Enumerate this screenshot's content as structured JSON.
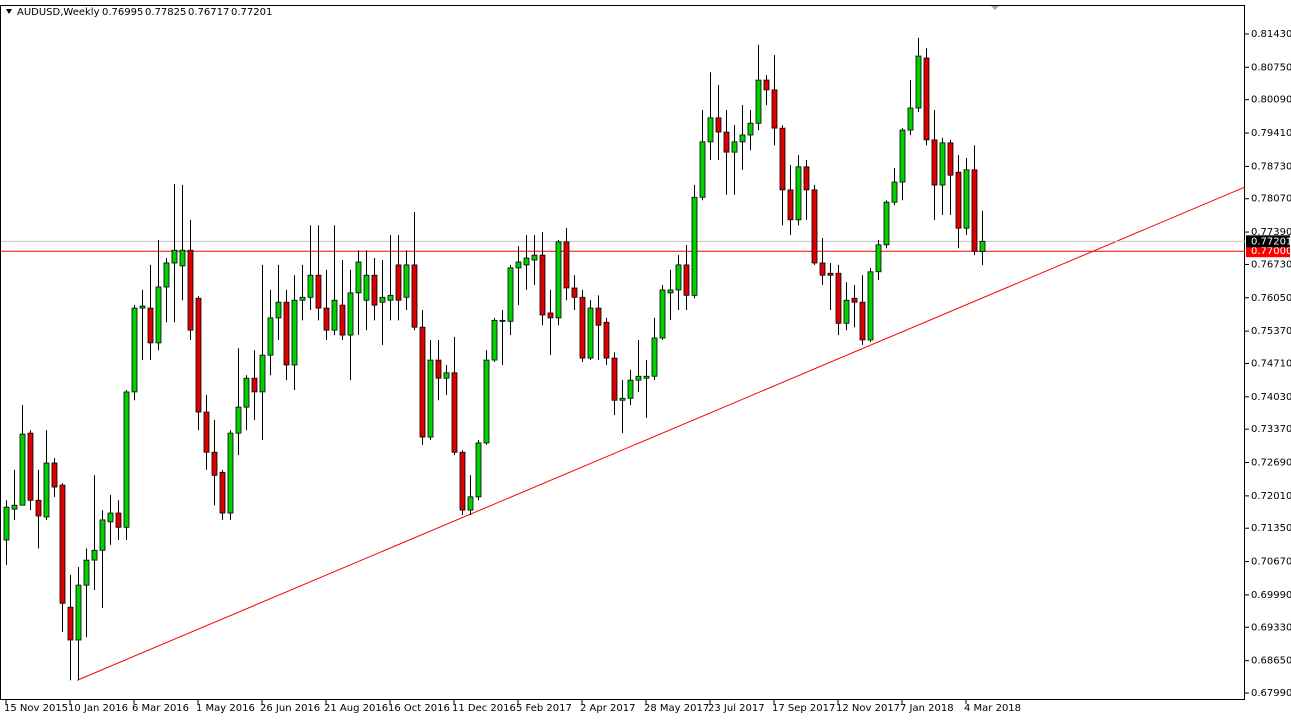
{
  "chart_data": {
    "type": "candlestick",
    "title": "AUDUSD,Weekly",
    "categories": [
      "15 Nov 2015",
      null,
      null,
      null,
      null,
      null,
      null,
      null,
      "10 Jan 2016",
      null,
      null,
      null,
      null,
      null,
      null,
      null,
      "6 Mar 2016",
      null,
      null,
      null,
      null,
      null,
      null,
      null,
      "1 May 2016",
      null,
      null,
      null,
      null,
      null,
      null,
      null,
      "26 Jun 2016",
      null,
      null,
      null,
      null,
      null,
      null,
      null,
      "21 Aug 2016",
      null,
      null,
      null,
      null,
      null,
      null,
      null,
      "16 Oct 2016",
      null,
      null,
      null,
      null,
      null,
      null,
      null,
      "11 Dec 2016",
      null,
      null,
      null,
      null,
      null,
      null,
      null,
      "5 Feb 2017",
      null,
      null,
      null,
      null,
      null,
      null,
      null,
      "2 Apr 2017",
      null,
      null,
      null,
      null,
      null,
      null,
      null,
      "28 May 2017",
      null,
      null,
      null,
      null,
      null,
      null,
      null,
      "23 Jul 2017",
      null,
      null,
      null,
      null,
      null,
      null,
      null,
      "17 Sep 2017",
      null,
      null,
      null,
      null,
      null,
      null,
      null,
      "12 Nov 2017",
      null,
      null,
      null,
      null,
      null,
      null,
      null,
      "7 Jan 2018",
      null,
      null,
      null,
      null,
      null,
      null,
      null,
      "4 Mar 2018",
      null,
      null
    ],
    "open": [
      0.7111,
      0.7174,
      0.7182,
      0.7329,
      0.7192,
      0.7158,
      0.7268,
      0.7223,
      0.6974,
      0.6907,
      0.7019,
      0.707,
      0.709,
      0.7148,
      0.7166,
      0.7137,
      0.7413,
      0.7584,
      0.7584,
      0.7513,
      0.7627,
      0.7676,
      0.767,
      0.7702,
      0.7604,
      0.7372,
      0.729,
      0.7249,
      0.7166,
      0.7329,
      0.7382,
      0.7441,
      0.7413,
      0.7488,
      0.7564,
      0.7596,
      0.7468,
      0.76,
      0.7606,
      0.7651,
      0.7584,
      0.7539,
      0.759,
      0.7529,
      0.7615,
      0.76,
      0.7651,
      0.7596,
      0.76,
      0.7672,
      0.7606,
      0.7672,
      0.7545,
      0.7321,
      0.7478,
      0.7441,
      0.7452,
      0.729,
      0.7172,
      0.7199,
      0.7309,
      0.7478,
      0.7557,
      0.7557,
      0.7666,
      0.7672,
      0.7682,
      0.7692,
      0.7574,
      0.7564,
      0.7719,
      0.7625,
      0.7606,
      0.7482,
      0.7584,
      0.7555,
      0.7482,
      0.7396,
      0.74,
      0.7437,
      0.7441,
      0.7445,
      0.7523,
      0.7615,
      0.7621,
      0.7672,
      0.761,
      0.781,
      0.7923,
      0.7972,
      0.7943,
      0.7902,
      0.7923,
      0.7937,
      0.7961,
      0.8049,
      0.8029,
      0.7951,
      0.7825,
      0.7764,
      0.7872,
      0.7825,
      0.7676,
      0.7655,
      0.7655,
      0.7553,
      0.7604,
      0.7596,
      0.7519,
      0.7658,
      0.7713,
      0.78,
      0.7841,
      0.7947,
      0.7992,
      0.8094,
      0.7927,
      0.7835,
      0.7921,
      0.7861,
      0.7747,
      0.7866,
      0.76995
    ],
    "high": [
      0.7192,
      0.7254,
      0.7386,
      0.7335,
      0.7254,
      0.7335,
      0.7278,
      0.7227,
      0.704,
      0.7056,
      0.7094,
      0.7243,
      0.7172,
      0.7203,
      0.7192,
      0.7417,
      0.759,
      0.7621,
      0.7672,
      0.7723,
      0.7686,
      0.7837,
      0.7835,
      0.7764,
      0.7608,
      0.7407,
      0.7356,
      0.7254,
      0.7335,
      0.7502,
      0.7447,
      0.7498,
      0.7672,
      0.7621,
      0.7672,
      0.7621,
      0.7651,
      0.7672,
      0.7753,
      0.7753,
      0.7662,
      0.7753,
      0.7682,
      0.7662,
      0.7702,
      0.7702,
      0.7686,
      0.7682,
      0.7733,
      0.7733,
      0.7702,
      0.778,
      0.758,
      0.7519,
      0.7519,
      0.7468,
      0.7525,
      0.7294,
      0.7243,
      0.7315,
      0.7498,
      0.7564,
      0.758,
      0.7672,
      0.771,
      0.7733,
      0.7733,
      0.7739,
      0.7621,
      0.7723,
      0.7747,
      0.7651,
      0.7621,
      0.76,
      0.761,
      0.7564,
      0.7494,
      0.7437,
      0.7458,
      0.7519,
      0.7478,
      0.7564,
      0.7631,
      0.7662,
      0.7692,
      0.7713,
      0.7835,
      0.7988,
      0.8065,
      0.8039,
      0.7988,
      0.7957,
      0.7998,
      0.7988,
      0.8121,
      0.8059,
      0.81,
      0.7957,
      0.7876,
      0.7896,
      0.7886,
      0.7835,
      0.7727,
      0.7676,
      0.7672,
      0.7637,
      0.7631,
      0.7651,
      0.7666,
      0.7723,
      0.7804,
      0.787,
      0.7951,
      0.8049,
      0.8135,
      0.8114,
      0.7988,
      0.7931,
      0.7927,
      0.7896,
      0.789,
      0.7916,
      0.77825
    ],
    "low": [
      0.706,
      0.7152,
      0.7182,
      0.7172,
      0.7094,
      0.7152,
      0.7199,
      0.6923,
      0.6825,
      0.6825,
      0.6913,
      0.7009,
      0.6972,
      0.7101,
      0.7111,
      0.7111,
      0.7396,
      0.7478,
      0.7478,
      0.7498,
      0.7555,
      0.7555,
      0.76,
      0.7519,
      0.7335,
      0.7254,
      0.7182,
      0.7152,
      0.7152,
      0.7284,
      0.7335,
      0.7356,
      0.7315,
      0.7447,
      0.7519,
      0.7437,
      0.7417,
      0.7559,
      0.758,
      0.7559,
      0.7519,
      0.7529,
      0.7519,
      0.7437,
      0.7529,
      0.7539,
      0.7559,
      0.7509,
      0.7559,
      0.7559,
      0.758,
      0.7539,
      0.7305,
      0.7315,
      0.7396,
      0.7407,
      0.7284,
      0.7162,
      0.7162,
      0.7192,
      0.7305,
      0.7474,
      0.7468,
      0.7529,
      0.759,
      0.7621,
      0.7631,
      0.7549,
      0.7488,
      0.7549,
      0.76,
      0.758,
      0.7474,
      0.7478,
      0.7478,
      0.7468,
      0.7366,
      0.7329,
      0.7386,
      0.7413,
      0.736,
      0.7437,
      0.7519,
      0.756,
      0.758,
      0.758,
      0.7604,
      0.7804,
      0.7886,
      0.7886,
      0.7815,
      0.7815,
      0.7866,
      0.7906,
      0.7947,
      0.7998,
      0.7916,
      0.7753,
      0.7733,
      0.7753,
      0.7764,
      0.7672,
      0.7631,
      0.758,
      0.7529,
      0.7539,
      0.7545,
      0.7509,
      0.7515,
      0.7641,
      0.7706,
      0.7794,
      0.7804,
      0.7937,
      0.7984,
      0.7916,
      0.7764,
      0.7774,
      0.7774,
      0.7706,
      0.7733,
      0.7692,
      0.76717
    ],
    "close": [
      0.7178,
      0.7182,
      0.7327,
      0.7192,
      0.716,
      0.7268,
      0.7219,
      0.6982,
      0.6907,
      0.7019,
      0.707,
      0.709,
      0.7152,
      0.7166,
      0.7137,
      0.7413,
      0.7584,
      0.7588,
      0.7513,
      0.7627,
      0.7676,
      0.7702,
      0.7702,
      0.7539,
      0.7372,
      0.729,
      0.7243,
      0.7166,
      0.7329,
      0.7382,
      0.7441,
      0.7413,
      0.7488,
      0.7564,
      0.7596,
      0.7468,
      0.76,
      0.7606,
      0.7651,
      0.7584,
      0.7539,
      0.76,
      0.7529,
      0.7615,
      0.7678,
      0.7651,
      0.759,
      0.7606,
      0.761,
      0.76,
      0.7672,
      0.7545,
      0.7321,
      0.7478,
      0.7441,
      0.7452,
      0.729,
      0.7172,
      0.7199,
      0.7309,
      0.7478,
      0.7559,
      0.7559,
      0.7666,
      0.7678,
      0.7686,
      0.7692,
      0.757,
      0.7564,
      0.7719,
      0.7625,
      0.7606,
      0.7482,
      0.7584,
      0.7549,
      0.7482,
      0.7396,
      0.74,
      0.7437,
      0.7445,
      0.7445,
      0.7523,
      0.7621,
      0.7621,
      0.7672,
      0.761,
      0.781,
      0.7923,
      0.7972,
      0.7943,
      0.7902,
      0.7923,
      0.7937,
      0.7961,
      0.8049,
      0.8029,
      0.7951,
      0.7825,
      0.7764,
      0.7872,
      0.7825,
      0.7676,
      0.7651,
      0.7651,
      0.7553,
      0.76,
      0.7596,
      0.7519,
      0.7658,
      0.7713,
      0.78,
      0.7841,
      0.7947,
      0.7992,
      0.8098,
      0.7927,
      0.7835,
      0.7921,
      0.7855,
      0.7747,
      0.7866,
      0.77,
      0.77201
    ],
    "up_color": "#00d000",
    "down_color": "#dd0000",
    "ylim": [
      0.67847,
      0.82021
    ],
    "yticks": [
      {
        "value": 0.8143,
        "label": "0.81430"
      },
      {
        "value": 0.8075,
        "label": "0.80750"
      },
      {
        "value": 0.8009,
        "label": "0.80090"
      },
      {
        "value": 0.7941,
        "label": "0.79410"
      },
      {
        "value": 0.7873,
        "label": "0.78730"
      },
      {
        "value": 0.7807,
        "label": "0.78070"
      },
      {
        "value": 0.7739,
        "label": "0.77390"
      },
      {
        "value": 0.7673,
        "label": "0.76730"
      },
      {
        "value": 0.7605,
        "label": "0.76050"
      },
      {
        "value": 0.7537,
        "label": "0.75370"
      },
      {
        "value": 0.7471,
        "label": "0.74710"
      },
      {
        "value": 0.7403,
        "label": "0.74030"
      },
      {
        "value": 0.7337,
        "label": "0.73370"
      },
      {
        "value": 0.7269,
        "label": "0.72690"
      },
      {
        "value": 0.7201,
        "label": "0.72010"
      },
      {
        "value": 0.7135,
        "label": "0.71350"
      },
      {
        "value": 0.7067,
        "label": "0.70670"
      },
      {
        "value": 0.6999,
        "label": "0.69990"
      },
      {
        "value": 0.6933,
        "label": "0.69330"
      },
      {
        "value": 0.6865,
        "label": "0.68650"
      },
      {
        "value": 0.6799,
        "label": "0.67990"
      }
    ],
    "hline": {
      "value": 0.77,
      "label": "0.77000",
      "color": "#ff0000"
    },
    "trendline": {
      "x": [
        8.9,
        154.9
      ],
      "y": [
        0.6825,
        0.7831
      ],
      "color": "#ff0000"
    }
  }
}
